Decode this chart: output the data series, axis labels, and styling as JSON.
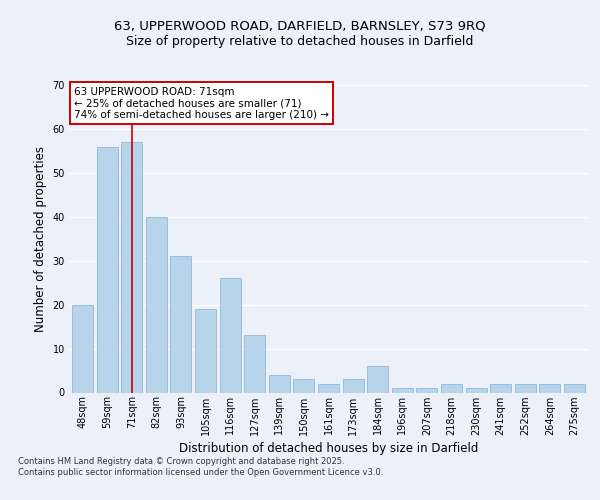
{
  "title_line1": "63, UPPERWOOD ROAD, DARFIELD, BARNSLEY, S73 9RQ",
  "title_line2": "Size of property relative to detached houses in Darfield",
  "xlabel": "Distribution of detached houses by size in Darfield",
  "ylabel": "Number of detached properties",
  "categories": [
    "48sqm",
    "59sqm",
    "71sqm",
    "82sqm",
    "93sqm",
    "105sqm",
    "116sqm",
    "127sqm",
    "139sqm",
    "150sqm",
    "161sqm",
    "173sqm",
    "184sqm",
    "196sqm",
    "207sqm",
    "218sqm",
    "230sqm",
    "241sqm",
    "252sqm",
    "264sqm",
    "275sqm"
  ],
  "values": [
    20,
    56,
    57,
    40,
    31,
    19,
    26,
    13,
    4,
    3,
    2,
    3,
    6,
    1,
    1,
    2,
    1,
    2,
    2,
    2,
    2
  ],
  "bar_color": "#b8d4ea",
  "bar_edge_color": "#90b8d8",
  "highlight_bar_index": 2,
  "highlight_line_color": "#cc0000",
  "annotation_text": "63 UPPERWOOD ROAD: 71sqm\n← 25% of detached houses are smaller (71)\n74% of semi-detached houses are larger (210) →",
  "annotation_box_facecolor": "#ffffff",
  "annotation_box_edgecolor": "#cc0000",
  "ylim": [
    0,
    70
  ],
  "yticks": [
    0,
    10,
    20,
    30,
    40,
    50,
    60,
    70
  ],
  "footer_text": "Contains HM Land Registry data © Crown copyright and database right 2025.\nContains public sector information licensed under the Open Government Licence v3.0.",
  "background_color": "#ecf0f8",
  "grid_color": "#ffffff",
  "title_fontsize": 9.5,
  "subtitle_fontsize": 9,
  "axis_label_fontsize": 8.5,
  "tick_fontsize": 7,
  "annotation_fontsize": 7.5,
  "footer_fontsize": 6
}
